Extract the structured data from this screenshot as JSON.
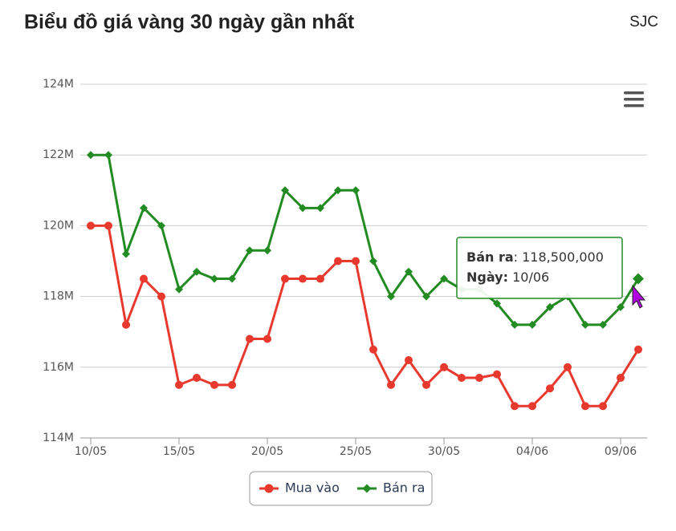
{
  "chart_data": {
    "type": "line",
    "title": "Biểu đồ giá vàng 30 ngày gần nhất",
    "subtitle": "SJC",
    "categories": [
      "10/05",
      null,
      null,
      null,
      null,
      "15/05",
      null,
      null,
      null,
      null,
      "20/05",
      null,
      null,
      null,
      null,
      "25/05",
      null,
      null,
      null,
      null,
      "30/05",
      null,
      null,
      null,
      null,
      "04/06",
      null,
      null,
      null,
      null,
      "09/06",
      null
    ],
    "series": [
      {
        "name": "Mua vào",
        "color": "#e8392f",
        "marker": "circle",
        "values": [
          120000000,
          120000000,
          117200000,
          118500000,
          118000000,
          115500000,
          115700000,
          115500000,
          115500000,
          116800000,
          116800000,
          118500000,
          118500000,
          118500000,
          119000000,
          119000000,
          116500000,
          115500000,
          116200000,
          115500000,
          116000000,
          115700000,
          115700000,
          115800000,
          114900000,
          114900000,
          115400000,
          116000000,
          114900000,
          114900000,
          115700000,
          116500000
        ]
      },
      {
        "name": "Bán ra",
        "color": "#228b22",
        "marker": "diamond",
        "values": [
          122000000,
          122000000,
          119200000,
          120500000,
          120000000,
          118200000,
          118700000,
          118500000,
          118500000,
          119300000,
          119300000,
          121000000,
          120500000,
          120500000,
          121000000,
          121000000,
          119000000,
          118000000,
          118700000,
          118000000,
          118500000,
          118200000,
          118200000,
          117800000,
          117200000,
          117200000,
          117700000,
          118000000,
          117200000,
          117200000,
          117700000,
          118500000
        ]
      }
    ],
    "ylim": [
      114000000,
      124000000
    ],
    "yticks": [
      {
        "value": 114000000,
        "label": "114M"
      },
      {
        "value": 116000000,
        "label": "116M"
      },
      {
        "value": 118000000,
        "label": "118M"
      },
      {
        "value": 120000000,
        "label": "120M"
      },
      {
        "value": 122000000,
        "label": "122M"
      },
      {
        "value": 124000000,
        "label": "124M"
      }
    ],
    "grid": true,
    "legend": "bottom",
    "tooltip": {
      "series": "Bán ra",
      "sep": ":",
      "value": 118500000,
      "value_label": "118,500,000",
      "date_label": "Ngày:",
      "date": "10/06"
    }
  }
}
